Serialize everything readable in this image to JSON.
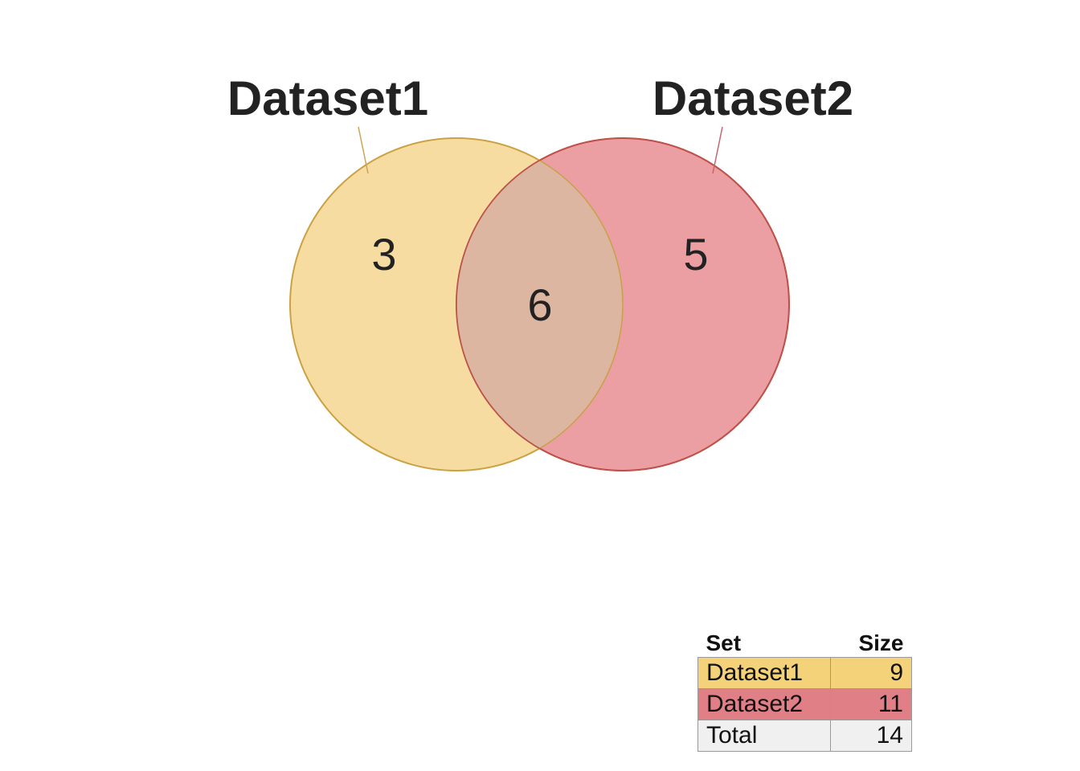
{
  "sets": [
    {
      "name": "Dataset1",
      "size": 9,
      "color": "#f3d27a",
      "stroke": "#d4a83a"
    },
    {
      "name": "Dataset2",
      "size": 11,
      "color": "#e07f86",
      "stroke": "#c8323d"
    }
  ],
  "regions": {
    "only_dataset1": "3",
    "intersection": "6",
    "only_dataset2": "5"
  },
  "table": {
    "header_set": "Set",
    "header_size": "Size",
    "rows": [
      {
        "label": "Dataset1",
        "value": "9"
      },
      {
        "label": "Dataset2",
        "value": "11"
      },
      {
        "label": "Total",
        "value": "14"
      }
    ]
  }
}
